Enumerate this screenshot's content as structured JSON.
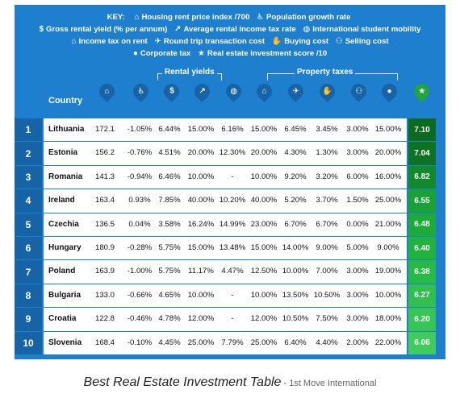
{
  "key": {
    "title": "KEY:",
    "items": [
      {
        "icon": "house-icon",
        "glyph": "⌂",
        "label": "Housing rent price index /700"
      },
      {
        "icon": "stroller-icon",
        "glyph": "♿",
        "label": "Population growth rate"
      },
      {
        "icon": "moneybag-icon",
        "glyph": "$",
        "label": "Gross rental yield (% per annum)"
      },
      {
        "icon": "chart-icon",
        "glyph": "↗",
        "label": "Average rental income tax rate"
      },
      {
        "icon": "globe-icon",
        "glyph": "◍",
        "label": "International student mobility"
      },
      {
        "icon": "house-tax-icon",
        "glyph": "⌂",
        "label": "Income tax on rent"
      },
      {
        "icon": "airplane-icon",
        "glyph": "✈",
        "label": "Round trip transaction cost"
      },
      {
        "icon": "hand-coin-icon",
        "glyph": "✋",
        "label": "Buying cost"
      },
      {
        "icon": "handshake-icon",
        "glyph": "⚇",
        "label": "Selling cost"
      },
      {
        "icon": "corporate-icon",
        "glyph": "●",
        "label": "Corporate tax"
      },
      {
        "icon": "star-icon",
        "glyph": "★",
        "label": "Real estate investment score /10"
      }
    ]
  },
  "groups": {
    "rental_yields": "Rental yields",
    "property_taxes": "Property taxes"
  },
  "table": {
    "country_header": "Country",
    "rows": [
      {
        "rank": "1",
        "country": "Lithuania",
        "values": [
          "172.1",
          "-1.05%",
          "6.44%",
          "15.00%",
          "6.16%",
          "15.00%",
          "6.45%",
          "3.45%",
          "3.00%",
          "15.00%"
        ],
        "score": "7.10"
      },
      {
        "rank": "2",
        "country": "Estonia",
        "values": [
          "156.2",
          "-0.76%",
          "4.51%",
          "20.00%",
          "12.30%",
          "20.00%",
          "4.30%",
          "1.30%",
          "3.00%",
          "20.00%"
        ],
        "score": "7.04"
      },
      {
        "rank": "3",
        "country": "Romania",
        "values": [
          "141.3",
          "-0.94%",
          "6.46%",
          "10.00%",
          "-",
          "10.00%",
          "9.20%",
          "3.20%",
          "6.00%",
          "16.00%"
        ],
        "score": "6.82"
      },
      {
        "rank": "4",
        "country": "Ireland",
        "values": [
          "163.4",
          "0.93%",
          "7.85%",
          "40.00%",
          "10.20%",
          "40.00%",
          "5.20%",
          "3.70%",
          "1.50%",
          "25.00%"
        ],
        "score": "6.55"
      },
      {
        "rank": "5",
        "country": "Czechia",
        "values": [
          "136.5",
          "0.04%",
          "3.58%",
          "16.24%",
          "14.99%",
          "23.00%",
          "6.70%",
          "6.70%",
          "0.00%",
          "21.00%"
        ],
        "score": "6.48"
      },
      {
        "rank": "6",
        "country": "Hungary",
        "values": [
          "180.9",
          "-0.28%",
          "5.75%",
          "15.00%",
          "13.48%",
          "15.00%",
          "14.00%",
          "9.00%",
          "5.00%",
          "9.00%"
        ],
        "score": "6.40"
      },
      {
        "rank": "7",
        "country": "Poland",
        "values": [
          "163.9",
          "-1.00%",
          "5.75%",
          "11.17%",
          "4.47%",
          "12.50%",
          "10.00%",
          "7.00%",
          "3.00%",
          "19.00%"
        ],
        "score": "6.38"
      },
      {
        "rank": "8",
        "country": "Bulgaria",
        "values": [
          "133.0",
          "-0.66%",
          "4.65%",
          "10.00%",
          "-",
          "10.00%",
          "13.50%",
          "10.50%",
          "3.00%",
          "10.00%"
        ],
        "score": "6.27"
      },
      {
        "rank": "9",
        "country": "Croatia",
        "values": [
          "122.8",
          "-0.46%",
          "4.78%",
          "12.00%",
          "-",
          "12.00%",
          "10.50%",
          "7.50%",
          "3.00%",
          "18.00%"
        ],
        "score": "6.20"
      },
      {
        "rank": "10",
        "country": "Slovenia",
        "values": [
          "168.4",
          "-0.10%",
          "4.45%",
          "25.00%",
          "7.79%",
          "25.00%",
          "6.40%",
          "4.40%",
          "2.00%",
          "22.00%"
        ],
        "score": "6.06"
      }
    ]
  },
  "score_colors": [
    "#0b6b1f",
    "#0d7223",
    "#128a2c",
    "#19a235",
    "#1cab39",
    "#22b33f",
    "#28ba46",
    "#2fc04d",
    "#37c655",
    "#40cc5d"
  ],
  "caption": {
    "title": "Best Real Estate Investment Table",
    "source": " - 1st Move International"
  }
}
